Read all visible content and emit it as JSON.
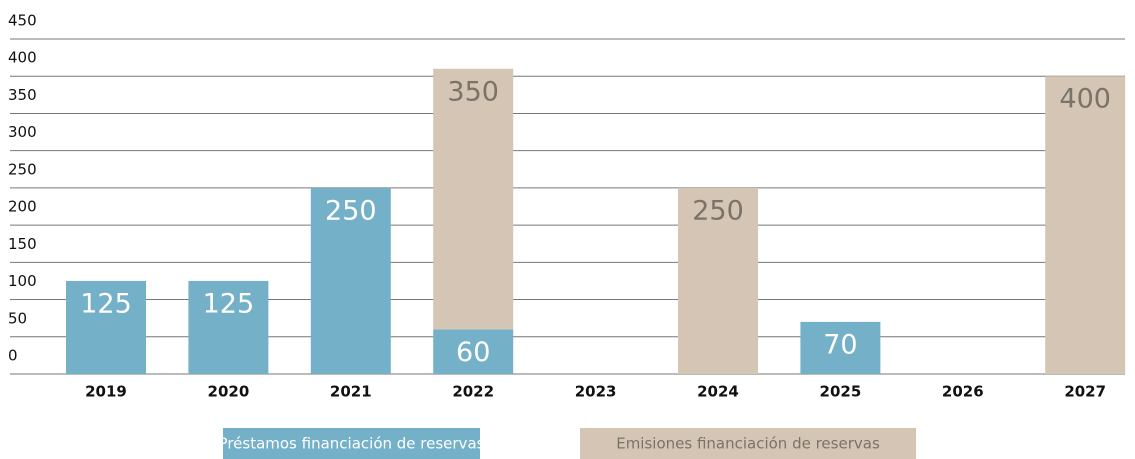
{
  "chart_data": {
    "type": "stacked_bar",
    "categories": [
      "2019",
      "2020",
      "2021",
      "2022",
      "2023",
      "2024",
      "2025",
      "2026",
      "2027"
    ],
    "series": [
      {
        "name": "Préstamos financiación de reservas",
        "color": "#74b1c9",
        "label_color": "#ffffff",
        "values": [
          125,
          125,
          250,
          60,
          null,
          null,
          70,
          null,
          null
        ]
      },
      {
        "name": "Emisiones financiación de reservas",
        "color": "#d5c5b5",
        "label_color": "#7a7468",
        "values": [
          null,
          null,
          null,
          350,
          null,
          250,
          null,
          null,
          400
        ]
      }
    ],
    "ylim": [
      0,
      450
    ],
    "yticks": [
      0,
      50,
      100,
      150,
      200,
      250,
      300,
      350,
      400,
      450
    ],
    "grid": true
  }
}
